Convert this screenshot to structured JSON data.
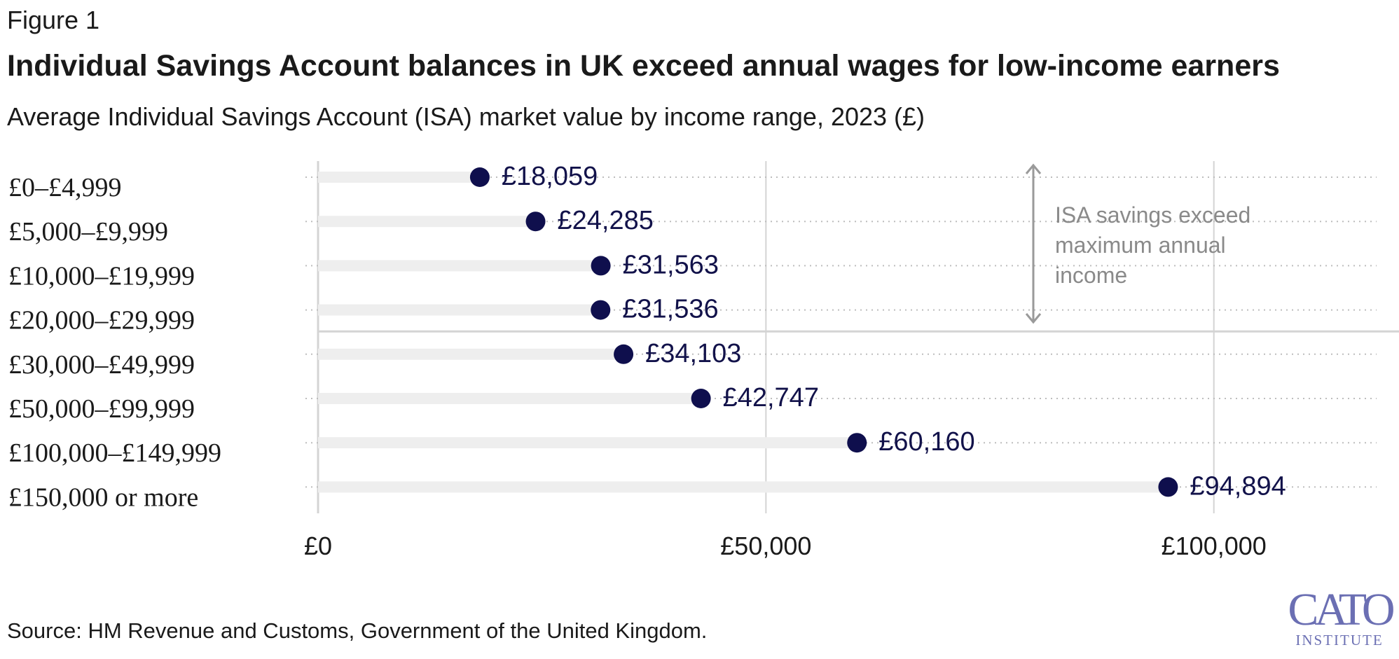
{
  "figure_label": "Figure 1",
  "title": "Individual Savings Account balances in UK exceed annual wages for low-income earners",
  "subtitle": "Average Individual Savings Account (ISA) market value by income range, 2023 (£)",
  "source": "Source: HM Revenue and Customs, Government of the United Kingdom.",
  "logo": {
    "main": "CATO",
    "sub": "INSTITUTE"
  },
  "colors": {
    "dot": "#0f0f4d",
    "track": "#eeeeee",
    "grid": "#d4d4d4",
    "annotation": "#9a9a9a",
    "logo": "#6b6fb3"
  },
  "chart_data": {
    "type": "scatter",
    "categories": [
      "£0–£4,999",
      "£5,000–£9,999",
      "£10,000–£19,999",
      "£20,000–£29,999",
      "£30,000–£49,999",
      "£50,000–£99,999",
      "£100,000–£149,999",
      "£150,000 or more"
    ],
    "values": [
      18059,
      24285,
      31563,
      31536,
      34103,
      42747,
      60160,
      94894
    ],
    "value_labels": [
      "£18,059",
      "£24,285",
      "£31,563",
      "£31,536",
      "£34,103",
      "£42,747",
      "£60,160",
      "£94,894"
    ],
    "xlim": [
      0,
      108000
    ],
    "xticks": [
      0,
      50000,
      100000
    ],
    "xtick_labels": [
      "£0",
      "£50,000",
      "£100,000"
    ],
    "grid": true,
    "annotation": {
      "lines": [
        "ISA savings exceed",
        "maximum annual",
        "income"
      ],
      "spans_categories": [
        0,
        3
      ]
    }
  }
}
